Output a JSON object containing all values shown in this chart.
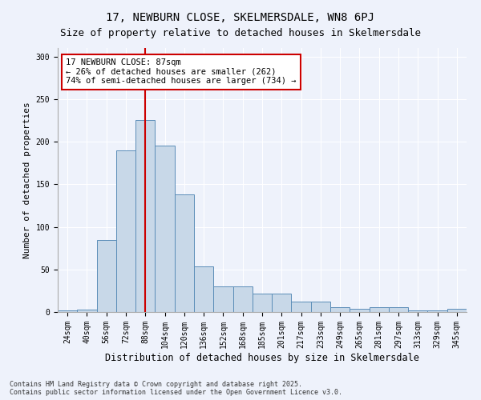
{
  "title1": "17, NEWBURN CLOSE, SKELMERSDALE, WN8 6PJ",
  "title2": "Size of property relative to detached houses in Skelmersdale",
  "xlabel": "Distribution of detached houses by size in Skelmersdale",
  "ylabel": "Number of detached properties",
  "categories": [
    "24sqm",
    "40sqm",
    "56sqm",
    "72sqm",
    "88sqm",
    "104sqm",
    "120sqm",
    "136sqm",
    "152sqm",
    "168sqm",
    "185sqm",
    "201sqm",
    "217sqm",
    "233sqm",
    "249sqm",
    "265sqm",
    "281sqm",
    "297sqm",
    "313sqm",
    "329sqm",
    "345sqm"
  ],
  "values": [
    2,
    3,
    85,
    190,
    225,
    195,
    138,
    54,
    30,
    30,
    22,
    22,
    12,
    12,
    6,
    4,
    6,
    6,
    2,
    2,
    4
  ],
  "bar_color": "#c8d8e8",
  "bar_edge_color": "#5b8db8",
  "vline_x_index": 4,
  "vline_color": "#cc0000",
  "annotation_text": "17 NEWBURN CLOSE: 87sqm\n← 26% of detached houses are smaller (262)\n74% of semi-detached houses are larger (734) →",
  "annotation_box_color": "white",
  "annotation_box_edge": "#cc0000",
  "ylim": [
    0,
    310
  ],
  "yticks": [
    0,
    50,
    100,
    150,
    200,
    250,
    300
  ],
  "background_color": "#eef2fb",
  "grid_color": "white",
  "footer": "Contains HM Land Registry data © Crown copyright and database right 2025.\nContains public sector information licensed under the Open Government Licence v3.0.",
  "title_fontsize": 10,
  "subtitle_fontsize": 9,
  "xlabel_fontsize": 8.5,
  "ylabel_fontsize": 8,
  "tick_fontsize": 7,
  "annotation_fontsize": 7.5,
  "footer_fontsize": 6
}
